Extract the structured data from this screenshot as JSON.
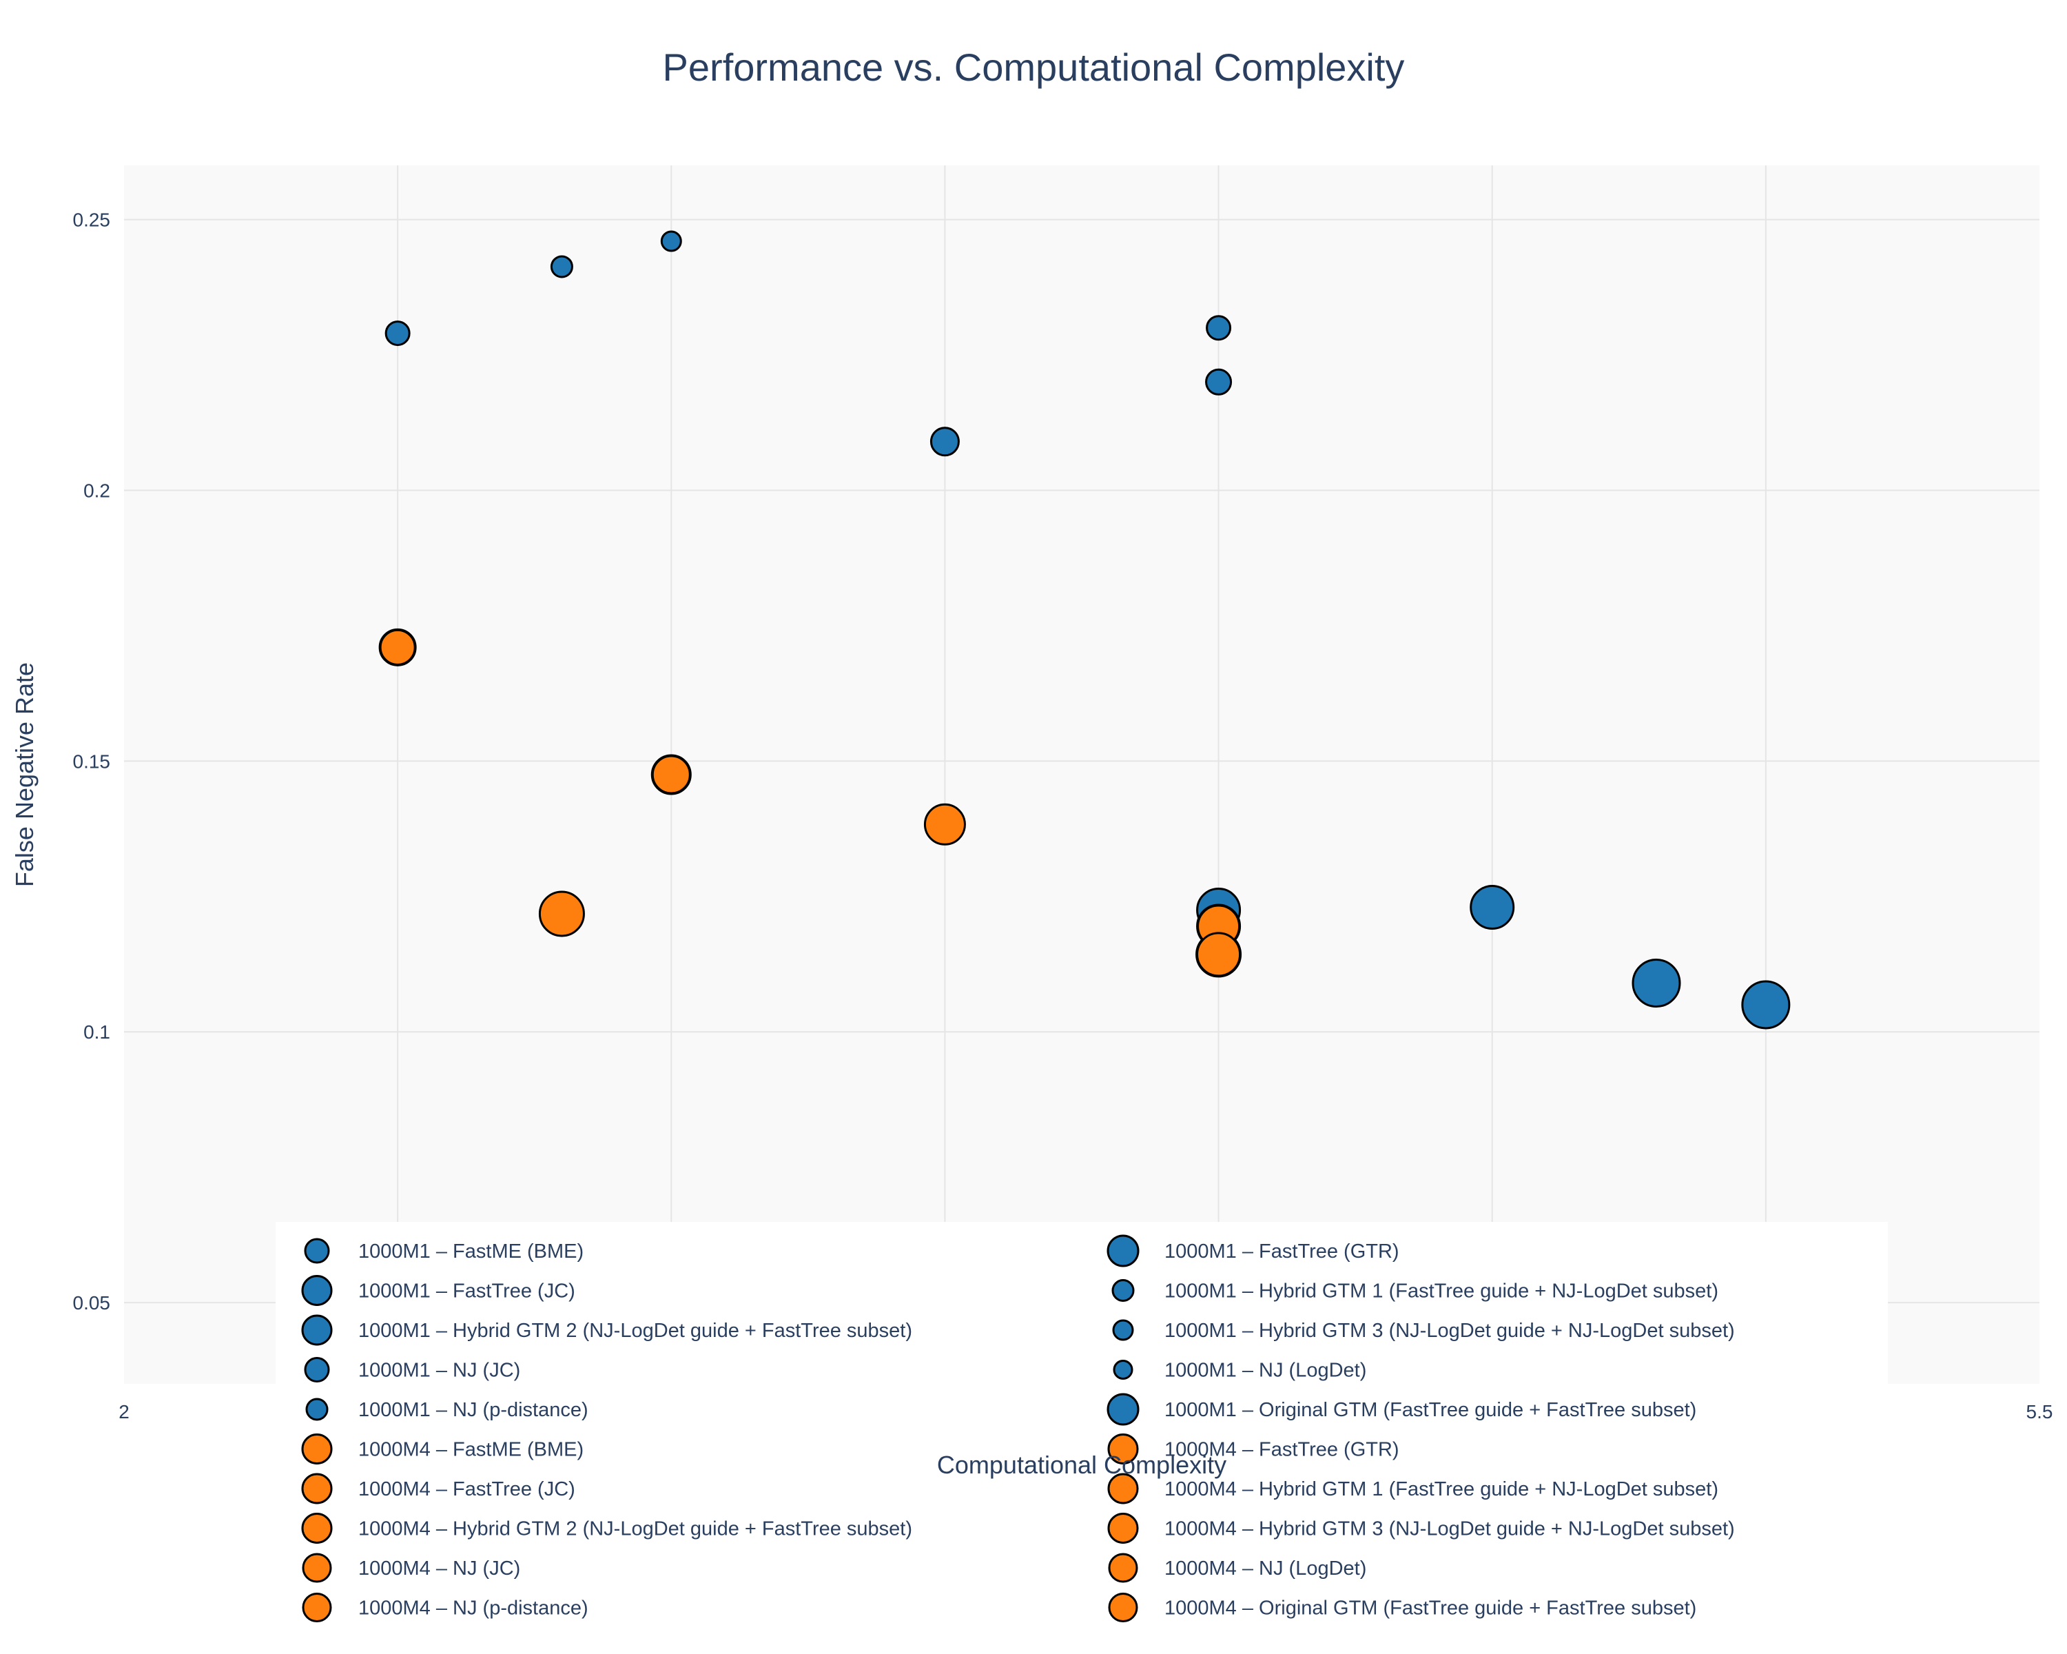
{
  "chart_data": {
    "type": "scatter",
    "title": "Performance vs. Computational Complexity",
    "xlabel": "Computational Complexity",
    "ylabel": "False Negative Rate",
    "xlim": [
      2,
      5.5
    ],
    "ylim": [
      0.035,
      0.26
    ],
    "x_ticks": [
      {
        "value": 2,
        "label": "2"
      },
      {
        "value": 5.5,
        "label": "5.5"
      }
    ],
    "y_ticks": [
      {
        "value": 0.05,
        "label": "0.05"
      },
      {
        "value": 0.1,
        "label": "0.1"
      },
      {
        "value": 0.15,
        "label": "0.15"
      },
      {
        "value": 0.2,
        "label": "0.2"
      },
      {
        "value": 0.25,
        "label": "0.25"
      }
    ],
    "x_gridlines": [
      2.5,
      3,
      3.5,
      4,
      4.5,
      5
    ],
    "grid": true,
    "legend_position": "bottom-center, overlapping plot, two columns",
    "colors": {
      "1000M1": "#1f77b4",
      "1000M4": "#ff7f0e",
      "marker_outline": "#000000",
      "plot_bg": "#f9f9f9",
      "grid": "#e5e5e5"
    },
    "size_meaning": "marker size shown as relative size (larger = bigger marker)",
    "series": [
      {
        "name": "1000M1 – FastME (BME)",
        "color": "#1f77b4",
        "points": [
          {
            "x": 3.5,
            "y": 0.209,
            "size": 20
          }
        ]
      },
      {
        "name": "1000M1 – FastTree (GTR)",
        "color": "#1f77b4",
        "points": [
          {
            "x": 5.0,
            "y": 0.105,
            "size": 34
          }
        ]
      },
      {
        "name": "1000M1 – FastTree (JC)",
        "color": "#1f77b4",
        "points": [
          {
            "x": 4.5,
            "y": 0.123,
            "size": 31
          }
        ]
      },
      {
        "name": "1000M1 – Hybrid GTM 1 (FastTree guide + NJ-LogDet subset)",
        "color": "#1f77b4",
        "points": [
          {
            "x": 4.0,
            "y": 0.22,
            "size": 18
          }
        ]
      },
      {
        "name": "1000M1 – Hybrid GTM 2 (NJ-LogDet guide + FastTree subset)",
        "color": "#1f77b4",
        "points": [
          {
            "x": 4.0,
            "y": 0.1225,
            "size": 31
          }
        ]
      },
      {
        "name": "1000M1 – Hybrid GTM 3 (NJ-LogDet guide + NJ-LogDet subset)",
        "color": "#1f77b4",
        "points": [
          {
            "x": 4.0,
            "y": 0.23,
            "size": 17
          }
        ]
      },
      {
        "name": "1000M1 – NJ (JC)",
        "color": "#1f77b4",
        "points": [
          {
            "x": 2.5,
            "y": 0.229,
            "size": 17
          }
        ]
      },
      {
        "name": "1000M1 – NJ (LogDet)",
        "color": "#1f77b4",
        "points": [
          {
            "x": 3.0,
            "y": 0.246,
            "size": 14
          }
        ]
      },
      {
        "name": "1000M1 – NJ (p-distance)",
        "color": "#1f77b4",
        "points": [
          {
            "x": 2.8,
            "y": 0.2413,
            "size": 15
          }
        ]
      },
      {
        "name": "1000M1 – Original GTM (FastTree guide + FastTree subset)",
        "color": "#1f77b4",
        "points": [
          {
            "x": 4.8,
            "y": 0.109,
            "size": 34
          }
        ]
      },
      {
        "name": "1000M4 – FastME (BME)",
        "color": "#ff7f0e",
        "points": [
          {
            "x": 3.5,
            "y": 0.1383,
            "size": 29
          }
        ]
      },
      {
        "name": "1000M4 – FastTree (GTR)",
        "color": "#ff7f0e",
        "points": [
          {
            "x": 4.0,
            "y": 0.1143,
            "size": 32
          }
        ]
      },
      {
        "name": "1000M4 – FastTree (JC)",
        "color": "#ff7f0e",
        "points": [
          {
            "x": 2.8,
            "y": 0.1218,
            "size": 32
          }
        ]
      },
      {
        "name": "1000M4 – Hybrid GTM 1 (FastTree guide + NJ-LogDet subset)",
        "color": "#ff7f0e",
        "points": [
          {
            "x": 4.0,
            "y": 0.1195,
            "size": 31
          }
        ]
      },
      {
        "name": "1000M4 – Hybrid GTM 2 (NJ-LogDet guide + FastTree subset)",
        "color": "#ff7f0e",
        "points": [
          {
            "x": 4.0,
            "y": 0.1195,
            "size": 30
          }
        ]
      },
      {
        "name": "1000M4 – Hybrid GTM 3 (NJ-LogDet guide + NJ-LogDet subset)",
        "color": "#ff7f0e",
        "points": [
          {
            "x": 3.0,
            "y": 0.1475,
            "size": 28
          }
        ]
      },
      {
        "name": "1000M4 – NJ (JC)",
        "color": "#ff7f0e",
        "points": [
          {
            "x": 2.5,
            "y": 0.171,
            "size": 26
          }
        ]
      },
      {
        "name": "1000M4 – NJ (LogDet)",
        "color": "#ff7f0e",
        "points": [
          {
            "x": 3.0,
            "y": 0.1475,
            "size": 27
          }
        ]
      },
      {
        "name": "1000M4 – NJ (p-distance)",
        "color": "#ff7f0e",
        "points": [
          {
            "x": 2.5,
            "y": 0.171,
            "size": 25
          }
        ]
      },
      {
        "name": "1000M4 – Original GTM (FastTree guide + FastTree subset)",
        "color": "#ff7f0e",
        "points": [
          {
            "x": 4.0,
            "y": 0.1143,
            "size": 31
          }
        ]
      }
    ],
    "legend": [
      {
        "label": "1000M1 – FastME (BME)",
        "color": "#1f77b4",
        "size": 17
      },
      {
        "label": "1000M1 – FastTree (GTR)",
        "color": "#1f77b4",
        "size": 22
      },
      {
        "label": "1000M1 – FastTree (JC)",
        "color": "#1f77b4",
        "size": 21
      },
      {
        "label": "1000M1 – Hybrid GTM 1 (FastTree guide + NJ-LogDet subset)",
        "color": "#1f77b4",
        "size": 15
      },
      {
        "label": "1000M1 – Hybrid GTM 2 (NJ-LogDet guide + FastTree subset)",
        "color": "#1f77b4",
        "size": 21
      },
      {
        "label": "1000M1 – Hybrid GTM 3 (NJ-LogDet guide + NJ-LogDet subset)",
        "color": "#1f77b4",
        "size": 14
      },
      {
        "label": "1000M1 – NJ (JC)",
        "color": "#1f77b4",
        "size": 17
      },
      {
        "label": "1000M1 – NJ (LogDet)",
        "color": "#1f77b4",
        "size": 13
      },
      {
        "label": "1000M1 – NJ (p-distance)",
        "color": "#1f77b4",
        "size": 15
      },
      {
        "label": "1000M1 – Original GTM (FastTree guide + FastTree subset)",
        "color": "#1f77b4",
        "size": 22
      },
      {
        "label": "1000M4 – FastME (BME)",
        "color": "#ff7f0e",
        "size": 21
      },
      {
        "label": "1000M4 – FastTree (GTR)",
        "color": "#ff7f0e",
        "size": 21
      },
      {
        "label": "1000M4 – FastTree (JC)",
        "color": "#ff7f0e",
        "size": 21
      },
      {
        "label": "1000M4 – Hybrid GTM 1 (FastTree guide + NJ-LogDet subset)",
        "color": "#ff7f0e",
        "size": 21
      },
      {
        "label": "1000M4 – Hybrid GTM 2 (NJ-LogDet guide + FastTree subset)",
        "color": "#ff7f0e",
        "size": 21
      },
      {
        "label": "1000M4 – Hybrid GTM 3 (NJ-LogDet guide + NJ-LogDet subset)",
        "color": "#ff7f0e",
        "size": 21
      },
      {
        "label": "1000M4 – NJ (JC)",
        "color": "#ff7f0e",
        "size": 20
      },
      {
        "label": "1000M4 – NJ (LogDet)",
        "color": "#ff7f0e",
        "size": 20
      },
      {
        "label": "1000M4 – NJ (p-distance)",
        "color": "#ff7f0e",
        "size": 20
      },
      {
        "label": "1000M4 – Original GTM (FastTree guide + FastTree subset)",
        "color": "#ff7f0e",
        "size": 20
      }
    ]
  }
}
